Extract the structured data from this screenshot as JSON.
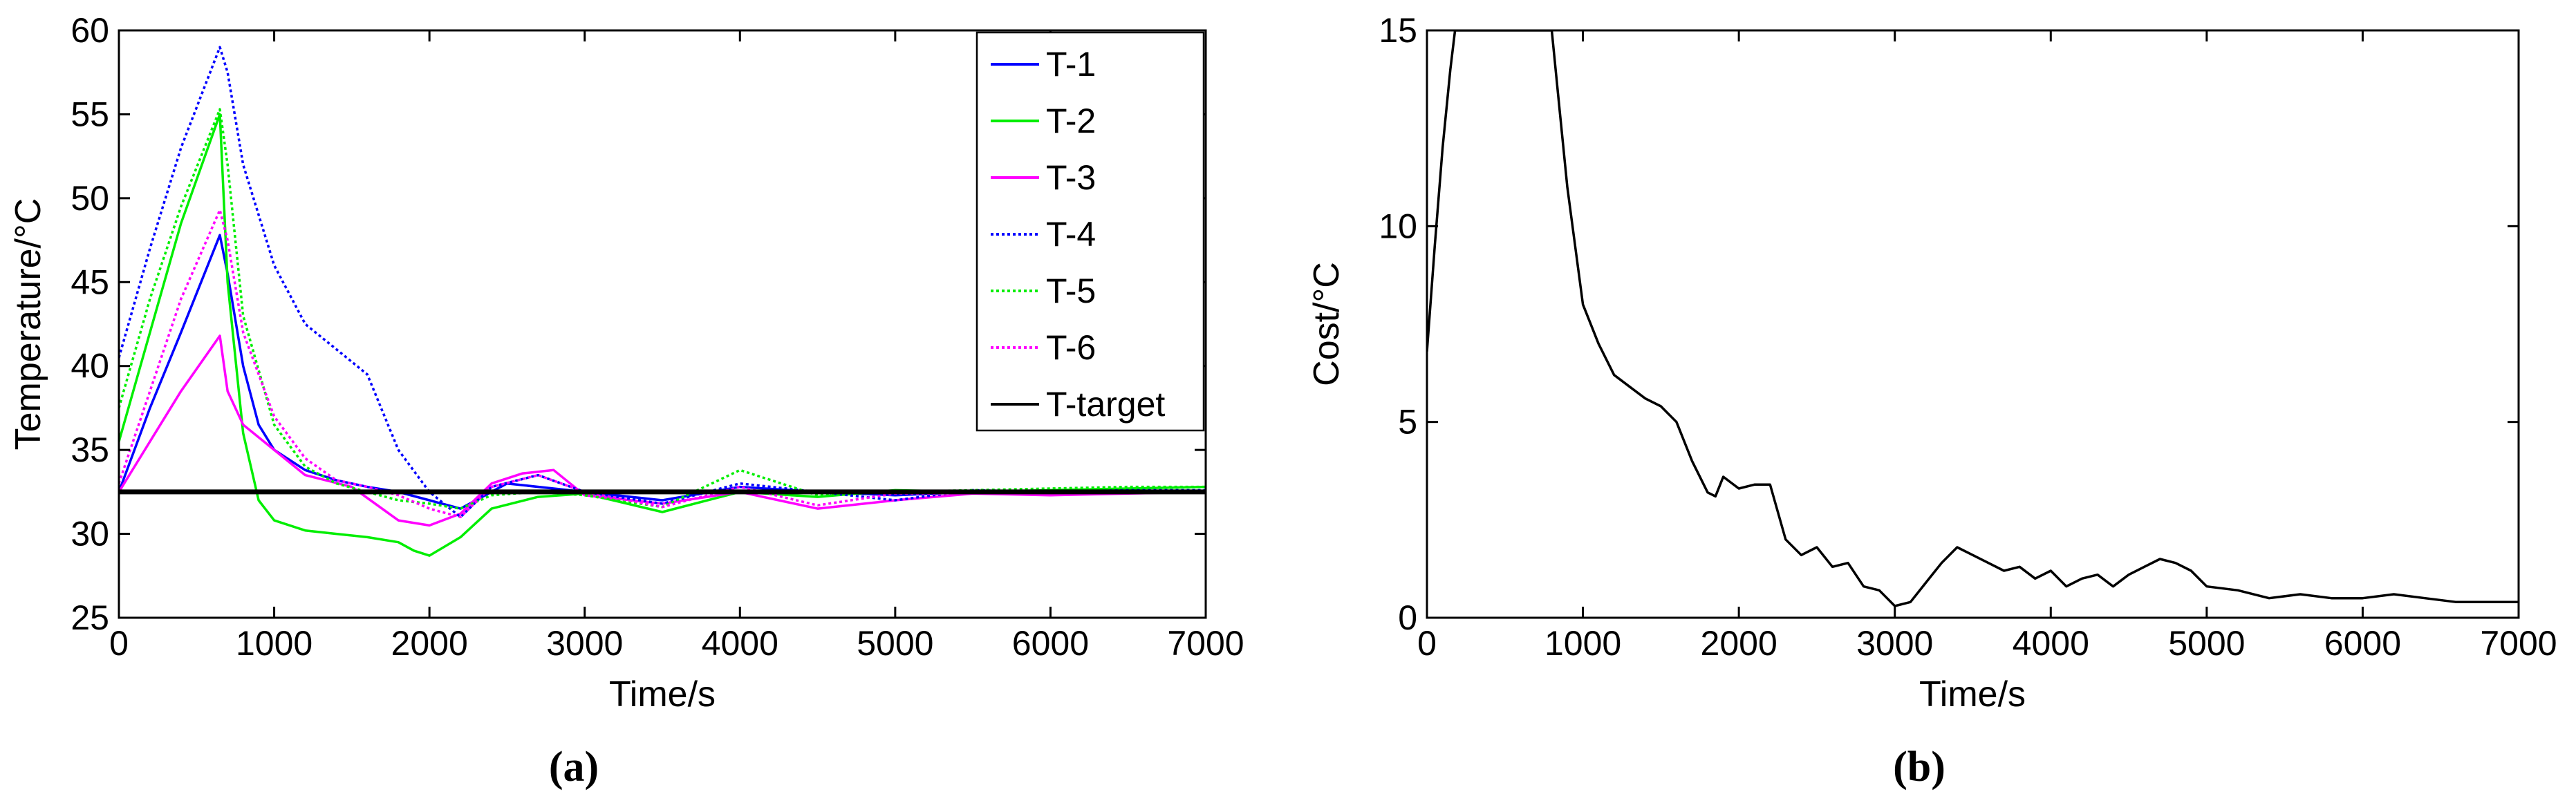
{
  "chart_data": [
    {
      "panel_label": "(a)",
      "type": "line",
      "xlabel": "Time/s",
      "ylabel": "Temperature/°C",
      "xlim": [
        0,
        7000
      ],
      "ylim": [
        25,
        60
      ],
      "xticks": [
        0,
        1000,
        2000,
        3000,
        4000,
        5000,
        6000,
        7000
      ],
      "yticks": [
        25,
        30,
        35,
        40,
        45,
        50,
        55,
        60
      ],
      "grid": false,
      "legend_position": "top-right",
      "series": [
        {
          "name": "T-1",
          "color": "#0000ff",
          "style": "solid",
          "x": [
            0,
            200,
            400,
            650,
            700,
            800,
            900,
            1000,
            1200,
            1400,
            1600,
            1800,
            2000,
            2200,
            2500,
            3000,
            3500,
            4000,
            4500,
            5000,
            5500,
            6000,
            6500,
            7000
          ],
          "y": [
            32.5,
            37.5,
            42.0,
            47.8,
            45.5,
            40.0,
            36.5,
            35.0,
            33.8,
            33.2,
            32.8,
            32.5,
            32.0,
            31.5,
            33.0,
            32.5,
            32.0,
            32.8,
            32.5,
            32.3,
            32.5,
            32.4,
            32.5,
            32.5
          ]
        },
        {
          "name": "T-2",
          "color": "#00ee00",
          "style": "solid",
          "x": [
            0,
            200,
            400,
            650,
            700,
            800,
            900,
            1000,
            1200,
            1400,
            1600,
            1800,
            1900,
            2000,
            2200,
            2400,
            2700,
            3000,
            3500,
            4000,
            4500,
            5000,
            5500,
            6000,
            6500,
            7000
          ],
          "y": [
            35.5,
            42.0,
            48.5,
            55.0,
            45.0,
            36.0,
            32.0,
            30.8,
            30.2,
            30.0,
            29.8,
            29.5,
            29.0,
            28.7,
            29.8,
            31.5,
            32.2,
            32.4,
            31.3,
            32.5,
            32.2,
            32.6,
            32.5,
            32.6,
            32.7,
            32.8
          ]
        },
        {
          "name": "T-3",
          "color": "#ff00ff",
          "style": "solid",
          "x": [
            0,
            200,
            400,
            650,
            700,
            800,
            1000,
            1200,
            1500,
            1800,
            2000,
            2200,
            2400,
            2600,
            2800,
            3000,
            3500,
            4000,
            4500,
            5000,
            5500,
            6000,
            6500,
            7000
          ],
          "y": [
            32.5,
            35.5,
            38.5,
            41.8,
            38.5,
            36.5,
            35.0,
            33.5,
            32.8,
            30.8,
            30.5,
            31.2,
            33.0,
            33.6,
            33.8,
            32.3,
            31.8,
            32.5,
            31.5,
            32.0,
            32.4,
            32.3,
            32.4,
            32.5
          ]
        },
        {
          "name": "T-4",
          "color": "#0000ff",
          "style": "dotted",
          "x": [
            0,
            200,
            400,
            650,
            700,
            800,
            1000,
            1200,
            1400,
            1600,
            1800,
            2000,
            2200,
            2400,
            2700,
            3000,
            3500,
            4000,
            4500,
            5000,
            5500,
            6000,
            6500,
            7000
          ],
          "y": [
            40.5,
            47.0,
            53.0,
            59.0,
            57.5,
            52.0,
            46.0,
            42.5,
            41.0,
            39.5,
            35.0,
            32.5,
            31.0,
            32.8,
            33.5,
            32.5,
            31.8,
            33.0,
            32.5,
            32.0,
            32.6,
            32.5,
            32.6,
            32.6
          ]
        },
        {
          "name": "T-5",
          "color": "#00ee00",
          "style": "dotted",
          "x": [
            0,
            200,
            400,
            650,
            700,
            800,
            1000,
            1200,
            1400,
            1600,
            1800,
            2000,
            2200,
            2400,
            2700,
            3000,
            3500,
            4000,
            4500,
            5000,
            5500,
            6000,
            6500,
            7000
          ],
          "y": [
            37.5,
            44.0,
            49.5,
            55.3,
            52.0,
            43.0,
            36.5,
            34.0,
            33.0,
            32.5,
            32.0,
            31.8,
            31.5,
            32.3,
            32.5,
            32.3,
            31.6,
            33.8,
            32.3,
            32.5,
            32.6,
            32.7,
            32.8,
            32.8
          ]
        },
        {
          "name": "T-6",
          "color": "#ff00ff",
          "style": "dotted",
          "x": [
            0,
            200,
            400,
            650,
            700,
            800,
            1000,
            1200,
            1400,
            1600,
            1800,
            2000,
            2200,
            2400,
            2700,
            3000,
            3500,
            4000,
            4500,
            5000,
            5500,
            6000,
            6500,
            7000
          ],
          "y": [
            33.0,
            38.5,
            44.0,
            49.3,
            47.5,
            42.0,
            37.0,
            34.5,
            33.2,
            32.8,
            32.3,
            31.5,
            31.0,
            32.8,
            33.5,
            32.5,
            31.6,
            32.8,
            31.7,
            32.4,
            32.4,
            32.5,
            32.5,
            32.5
          ]
        },
        {
          "name": "T-target",
          "color": "#000000",
          "style": "solid-thick",
          "x": [
            0,
            7000
          ],
          "y": [
            32.5,
            32.5
          ]
        }
      ]
    },
    {
      "panel_label": "(b)",
      "type": "line",
      "xlabel": "Time/s",
      "ylabel": "Cost/°C",
      "xlim": [
        0,
        7000
      ],
      "ylim": [
        0,
        15
      ],
      "xticks": [
        0,
        1000,
        2000,
        3000,
        4000,
        5000,
        6000,
        7000
      ],
      "yticks": [
        0,
        5,
        10,
        15
      ],
      "grid": false,
      "series": [
        {
          "color": "#000000",
          "x": [
            0,
            50,
            100,
            150,
            180,
            800,
            850,
            900,
            1000,
            1100,
            1200,
            1300,
            1400,
            1500,
            1600,
            1700,
            1800,
            1850,
            1900,
            2000,
            2100,
            2200,
            2300,
            2400,
            2500,
            2600,
            2700,
            2800,
            2900,
            3000,
            3100,
            3200,
            3300,
            3400,
            3500,
            3600,
            3700,
            3800,
            3900,
            4000,
            4100,
            4200,
            4300,
            4400,
            4500,
            4600,
            4700,
            4800,
            4900,
            5000,
            5200,
            5400,
            5600,
            5800,
            6000,
            6200,
            6400,
            6600,
            6800,
            7000
          ],
          "y": [
            6.8,
            9.5,
            12.0,
            14.0,
            15.0,
            15.0,
            13.0,
            11.0,
            8.0,
            7.0,
            6.2,
            5.9,
            5.6,
            5.4,
            5.0,
            4.0,
            3.2,
            3.1,
            3.6,
            3.3,
            3.4,
            3.4,
            2.0,
            1.6,
            1.8,
            1.3,
            1.4,
            0.8,
            0.7,
            0.3,
            0.4,
            0.9,
            1.4,
            1.8,
            1.6,
            1.4,
            1.2,
            1.3,
            1.0,
            1.2,
            0.8,
            1.0,
            1.1,
            0.8,
            1.1,
            1.3,
            1.5,
            1.4,
            1.2,
            0.8,
            0.7,
            0.5,
            0.6,
            0.5,
            0.5,
            0.6,
            0.5,
            0.4,
            0.4,
            0.4
          ]
        }
      ]
    }
  ]
}
